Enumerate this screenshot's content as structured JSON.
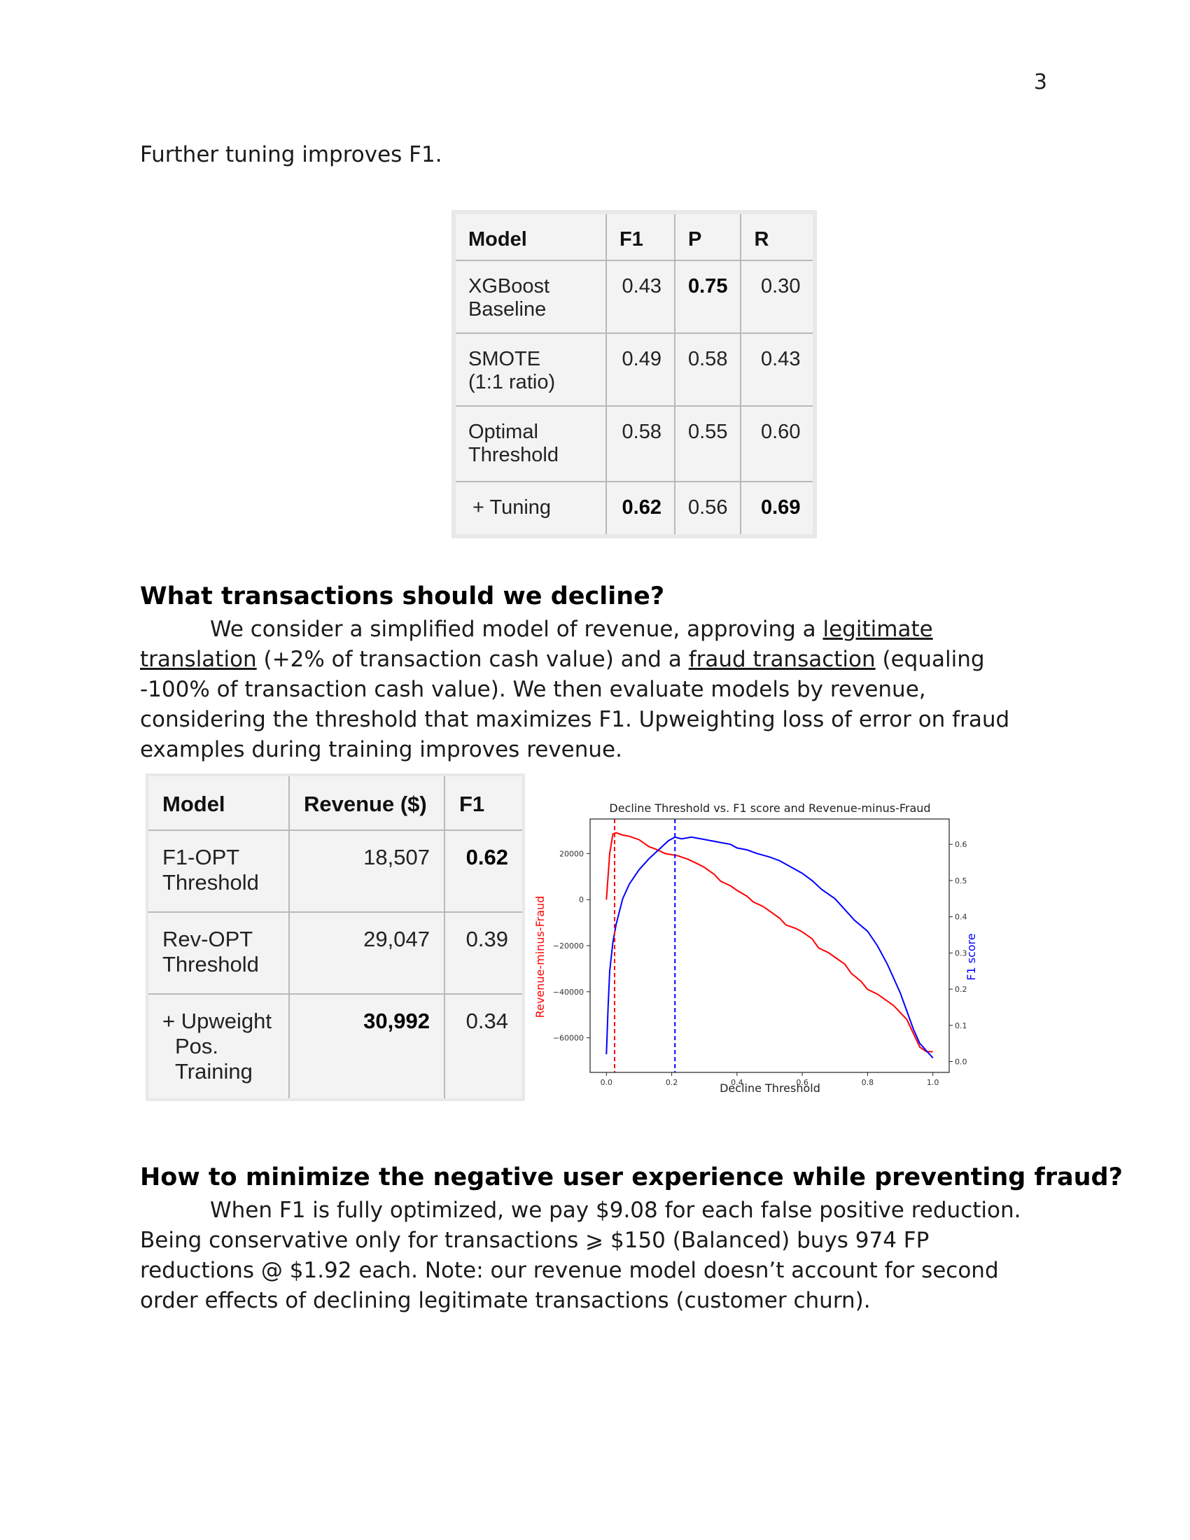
{
  "page_number": "3",
  "intro": "Further tuning improves F1.",
  "table1": {
    "headers": [
      "Model",
      "F1",
      "P",
      "R"
    ],
    "rows": [
      {
        "model_l1": "XGBoost",
        "model_l2": "Baseline",
        "f1": "0.43",
        "p": "0.75",
        "r": "0.30"
      },
      {
        "model_l1": "SMOTE",
        "model_l2": "(1:1 ratio)",
        "f1": "0.49",
        "p": "0.58",
        "r": "0.43"
      },
      {
        "model_l1": "Optimal",
        "model_l2": "Threshold",
        "f1": "0.58",
        "p": "0.55",
        "r": "0.60"
      },
      {
        "model_l1": "+ Tuning",
        "model_l2": "",
        "f1": "0.62",
        "p": "0.56",
        "r": "0.69"
      }
    ]
  },
  "section1": {
    "heading": "What transactions should we decline?",
    "p1": "We consider a simplified model of revenue, approving a ",
    "link1": "legitimate translation",
    "p2": " (+2% of transaction cash value) and a ",
    "link2": "fraud transaction",
    "p3": " (equaling -100% of transaction cash value). We then evaluate models by revenue, considering the threshold that maximizes F1. Upweighting loss of error on fraud examples during training improves revenue."
  },
  "table2": {
    "headers": [
      "Model",
      "Revenue ($)",
      "F1"
    ],
    "rows": [
      {
        "model_l1": "F1-OPT",
        "model_l2": "Threshold",
        "model_l3": "",
        "revenue": "18,507",
        "f1": "0.62"
      },
      {
        "model_l1": "Rev-OPT",
        "model_l2": "Threshold",
        "model_l3": "",
        "revenue": "29,047",
        "f1": "0.39"
      },
      {
        "model_l1": "+ Upweight",
        "model_l2": "Pos.",
        "model_l3": "Training",
        "revenue": "30,992",
        "f1": "0.34"
      }
    ]
  },
  "chart_data": {
    "type": "line",
    "title": "Decline Threshold vs. F1 score and Revenue-minus-Fraud",
    "xlabel": "Decline Threshold",
    "ylabel_left": "Revenue-minus-Fraud",
    "ylabel_right": "F1 score",
    "xlim": [
      -0.05,
      1.05
    ],
    "ylim_left": [
      -75000,
      35000
    ],
    "ylim_right": [
      -0.03,
      0.67
    ],
    "xticks": [
      "0.0",
      "0.2",
      "0.4",
      "0.6",
      "0.8",
      "1.0"
    ],
    "yticks_left": [
      "20000",
      "0",
      "−20000",
      "−40000",
      "−60000"
    ],
    "yticks_right": [
      "0.6",
      "0.5",
      "0.4",
      "0.3",
      "0.2",
      "0.1",
      "0.0"
    ],
    "grid": false,
    "colors": {
      "revenue": "#ff0000",
      "f1": "#0000ff"
    },
    "vlines": [
      {
        "x": 0.025,
        "color": "#ff0000",
        "style": "dashed"
      },
      {
        "x": 0.21,
        "color": "#0000ff",
        "style": "dashed"
      }
    ],
    "series": [
      {
        "axis": "left",
        "color": "#ff0000",
        "x": [
          0,
          0.01,
          0.02,
          0.03,
          0.05,
          0.07,
          0.1,
          0.13,
          0.15,
          0.18,
          0.2,
          0.22,
          0.25,
          0.28,
          0.3,
          0.33,
          0.35,
          0.38,
          0.4,
          0.43,
          0.45,
          0.48,
          0.5,
          0.53,
          0.55,
          0.58,
          0.6,
          0.63,
          0.65,
          0.68,
          0.7,
          0.73,
          0.75,
          0.78,
          0.8,
          0.83,
          0.85,
          0.88,
          0.9,
          0.92,
          0.94,
          0.96,
          0.98,
          1.0
        ],
        "y": [
          0,
          20000,
          28500,
          29000,
          28000,
          27500,
          26000,
          23000,
          22000,
          20000,
          19500,
          19000,
          17500,
          15500,
          14000,
          11000,
          8000,
          6000,
          4000,
          1500,
          -1000,
          -3000,
          -5000,
          -8000,
          -11000,
          -12500,
          -14000,
          -17000,
          -21000,
          -23000,
          -25000,
          -28000,
          -32000,
          -35500,
          -39000,
          -41000,
          -43000,
          -46000,
          -49000,
          -52000,
          -58000,
          -64000,
          -66000,
          -66000
        ]
      },
      {
        "axis": "right",
        "color": "#0000ff",
        "x": [
          0,
          0.005,
          0.01,
          0.02,
          0.03,
          0.05,
          0.07,
          0.1,
          0.13,
          0.16,
          0.19,
          0.21,
          0.23,
          0.26,
          0.29,
          0.32,
          0.35,
          0.38,
          0.4,
          0.43,
          0.46,
          0.5,
          0.53,
          0.56,
          0.6,
          0.63,
          0.66,
          0.7,
          0.73,
          0.76,
          0.8,
          0.83,
          0.86,
          0.88,
          0.9,
          0.92,
          0.94,
          0.96,
          0.98,
          1.0
        ],
        "y": [
          0.02,
          0.15,
          0.25,
          0.33,
          0.38,
          0.45,
          0.49,
          0.53,
          0.56,
          0.585,
          0.61,
          0.62,
          0.615,
          0.62,
          0.615,
          0.61,
          0.605,
          0.6,
          0.59,
          0.585,
          0.575,
          0.565,
          0.555,
          0.54,
          0.52,
          0.5,
          0.475,
          0.45,
          0.42,
          0.39,
          0.36,
          0.32,
          0.27,
          0.23,
          0.19,
          0.14,
          0.09,
          0.05,
          0.03,
          0.01
        ]
      }
    ]
  },
  "section2": {
    "heading": "How to minimize the negative user experience while preventing fraud?",
    "body": "When F1 is fully optimized, we pay $9.08 for each false positive reduction. Being conservative only for transactions ⩾ $150 (Balanced) buys 974 FP reductions @ $1.92 each. Note: our revenue model doesn’t account for second order effects of declining legitimate transactions (customer churn)."
  }
}
